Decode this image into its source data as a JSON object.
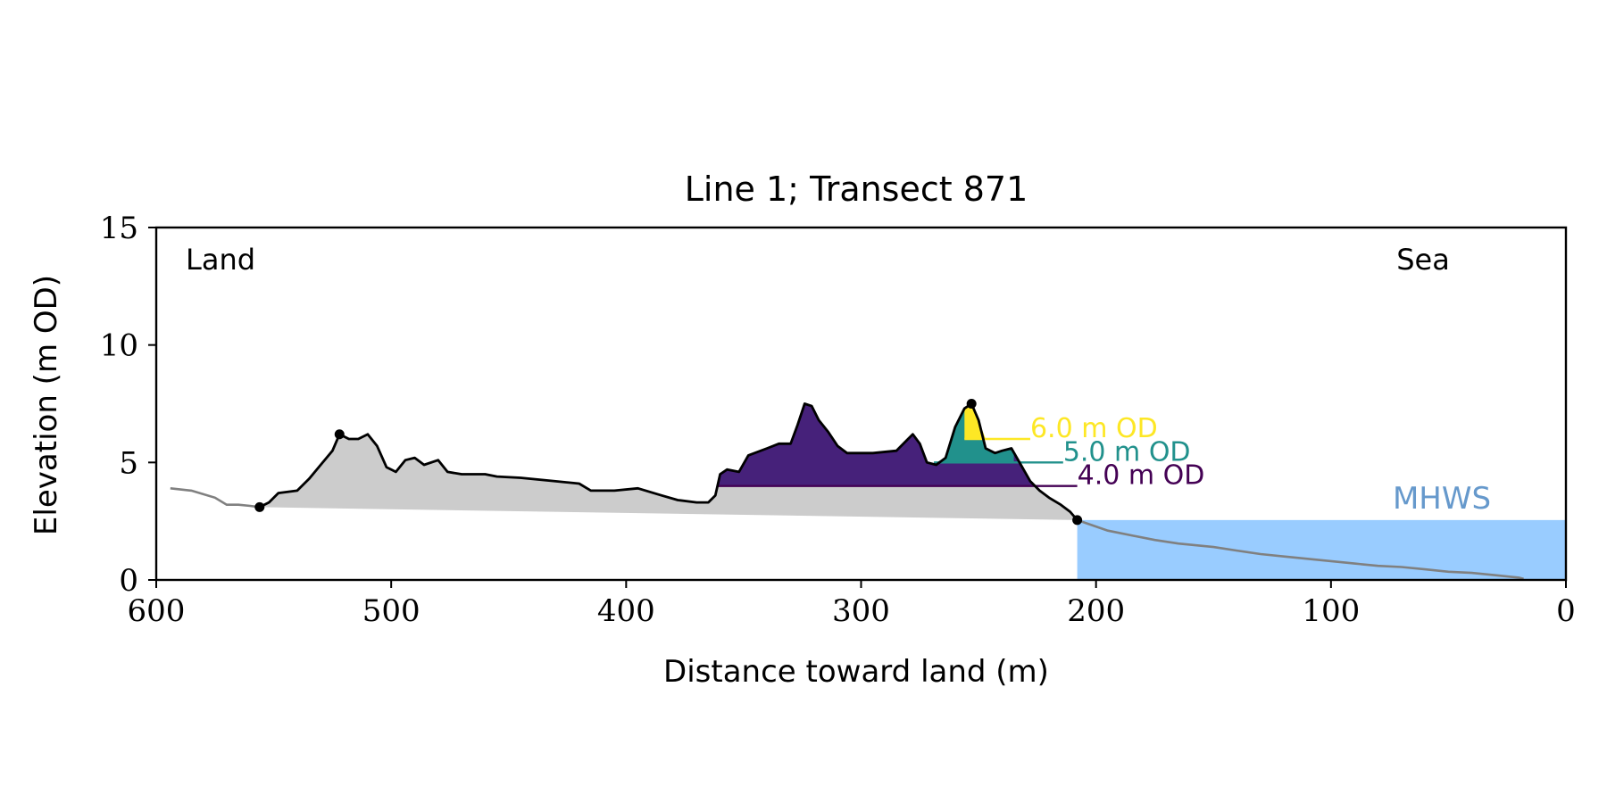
{
  "chart_data": {
    "type": "area",
    "title": "Line 1; Transect 871",
    "xlabel": "Distance toward land (m)",
    "ylabel": "Elevation (m OD)",
    "xlim": [
      600,
      0
    ],
    "ylim": [
      0,
      15
    ],
    "x_reversed": true,
    "xticks": [
      600,
      500,
      400,
      300,
      200,
      100,
      0
    ],
    "yticks": [
      0,
      5,
      10,
      15
    ],
    "grid": false,
    "corner_labels": {
      "land": "Land",
      "sea": "Sea"
    },
    "mhws": {
      "label": "MHWS",
      "elevation": 2.55,
      "color": "#99ccff",
      "label_color": "#6699cc"
    },
    "profile": [
      [
        594,
        3.9
      ],
      [
        585,
        3.8
      ],
      [
        575,
        3.5
      ],
      [
        570,
        3.2
      ],
      [
        565,
        3.2
      ],
      [
        560,
        3.15
      ],
      [
        556,
        3.1
      ],
      [
        552,
        3.3
      ],
      [
        548,
        3.7
      ],
      [
        540,
        3.8
      ],
      [
        535,
        4.3
      ],
      [
        530,
        4.9
      ],
      [
        525,
        5.5
      ],
      [
        522,
        6.2
      ],
      [
        518,
        6.0
      ],
      [
        514,
        6.0
      ],
      [
        510,
        6.2
      ],
      [
        506,
        5.7
      ],
      [
        502,
        4.8
      ],
      [
        498,
        4.6
      ],
      [
        494,
        5.1
      ],
      [
        490,
        5.2
      ],
      [
        486,
        4.9
      ],
      [
        480,
        5.1
      ],
      [
        476,
        4.6
      ],
      [
        470,
        4.5
      ],
      [
        460,
        4.5
      ],
      [
        455,
        4.4
      ],
      [
        445,
        4.35
      ],
      [
        430,
        4.2
      ],
      [
        420,
        4.1
      ],
      [
        415,
        3.8
      ],
      [
        405,
        3.8
      ],
      [
        395,
        3.9
      ],
      [
        385,
        3.6
      ],
      [
        378,
        3.4
      ],
      [
        370,
        3.3
      ],
      [
        365,
        3.3
      ],
      [
        362,
        3.6
      ],
      [
        360,
        4.5
      ],
      [
        357,
        4.7
      ],
      [
        352,
        4.6
      ],
      [
        348,
        5.3
      ],
      [
        340,
        5.6
      ],
      [
        335,
        5.8
      ],
      [
        330,
        5.8
      ],
      [
        327,
        6.6
      ],
      [
        324,
        7.5
      ],
      [
        321,
        7.4
      ],
      [
        318,
        6.8
      ],
      [
        314,
        6.3
      ],
      [
        310,
        5.7
      ],
      [
        306,
        5.4
      ],
      [
        295,
        5.4
      ],
      [
        285,
        5.5
      ],
      [
        282,
        5.8
      ],
      [
        278,
        6.2
      ],
      [
        275,
        5.8
      ],
      [
        272,
        5.0
      ],
      [
        268,
        4.9
      ],
      [
        264,
        5.2
      ],
      [
        260,
        6.5
      ],
      [
        256,
        7.3
      ],
      [
        253,
        7.5
      ],
      [
        250,
        6.8
      ],
      [
        247,
        5.6
      ],
      [
        243,
        5.4
      ],
      [
        240,
        5.5
      ],
      [
        236,
        5.6
      ],
      [
        232,
        4.9
      ],
      [
        228,
        4.2
      ],
      [
        224,
        3.8
      ],
      [
        220,
        3.5
      ],
      [
        215,
        3.2
      ],
      [
        211,
        2.9
      ],
      [
        208,
        2.55
      ]
    ],
    "seaward_profile": [
      [
        208,
        2.55
      ],
      [
        195,
        2.1
      ],
      [
        185,
        1.9
      ],
      [
        175,
        1.7
      ],
      [
        165,
        1.55
      ],
      [
        150,
        1.4
      ],
      [
        140,
        1.25
      ],
      [
        130,
        1.1
      ],
      [
        120,
        1.0
      ],
      [
        110,
        0.9
      ],
      [
        100,
        0.8
      ],
      [
        90,
        0.7
      ],
      [
        80,
        0.6
      ],
      [
        70,
        0.55
      ],
      [
        60,
        0.45
      ],
      [
        50,
        0.35
      ],
      [
        40,
        0.3
      ],
      [
        30,
        0.2
      ],
      [
        20,
        0.1
      ],
      [
        18,
        0.05
      ]
    ],
    "markers": [
      [
        556,
        3.1
      ],
      [
        522,
        6.2
      ],
      [
        253,
        7.5
      ],
      [
        208,
        2.55
      ]
    ],
    "thresholds": [
      {
        "label": "6.0 m OD",
        "elevation": 6.0,
        "x_start": 256,
        "x_end": 247,
        "line_to": 228,
        "color": "#fde725"
      },
      {
        "label": "5.0 m OD",
        "elevation": 5.0,
        "x_start": 269,
        "x_end": 235,
        "line_to": 214,
        "color": "#21918c"
      },
      {
        "label": "4.0 m OD",
        "elevation": 4.0,
        "x_start": 361,
        "x_end": 226,
        "line_to": 208,
        "color": "#440154"
      }
    ],
    "fill_color_above_4": "#46217a",
    "baseline_fill_color": "#cccccc"
  }
}
